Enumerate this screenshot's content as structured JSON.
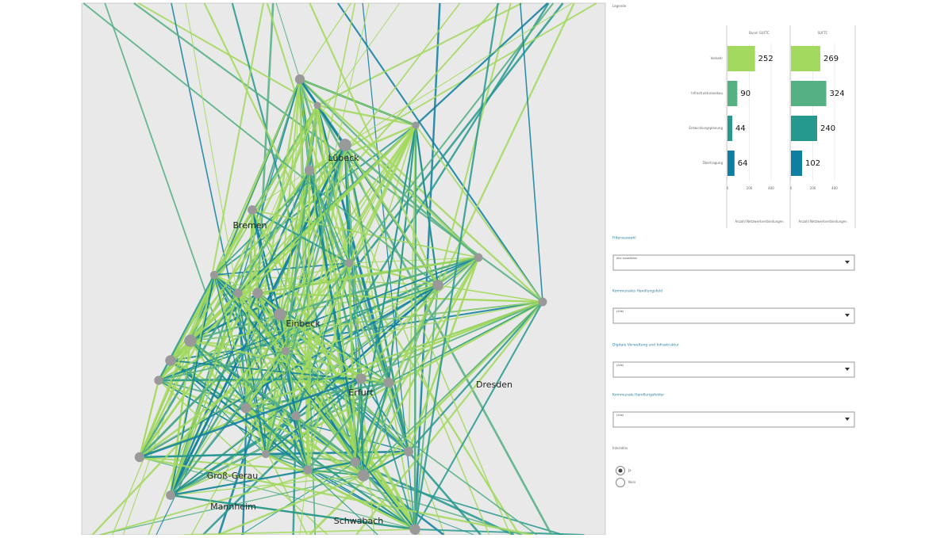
{
  "map": {
    "cities": [
      "Lübeck",
      "Bremen",
      "Einbeck",
      "Erfurt",
      "Dresden",
      "Groß-Gerau",
      "Mannheim",
      "Schwabach"
    ]
  },
  "legend": {
    "title": "Legende",
    "categories": [
      "Verkehr",
      "Infrastrukturausbau",
      "Entwicklungsplanung",
      "Übertragung"
    ],
    "colors": [
      "#a3d95e",
      "#55b083",
      "#26998f",
      "#0e7fa0"
    ],
    "axis_label": "Anzahl Netzwerkverbindungen",
    "xlim": [
      0,
      400
    ],
    "xticks": [
      0,
      200,
      400
    ],
    "charts": [
      {
        "title": "Bund: SUFTC",
        "values": [
          252,
          90,
          44,
          64
        ]
      },
      {
        "title": "SUFTC",
        "values": [
          269,
          324,
          240,
          102
        ]
      }
    ]
  },
  "filters": [
    {
      "label": "Filterauswahl",
      "selected": "Alle auswählen"
    },
    {
      "label": "Kommunales Handlungsfeld",
      "selected": "(Alle)"
    },
    {
      "label": "Digitale Verwaltung und Infrastruktur",
      "selected": "(Alle)"
    },
    {
      "label": "Kommunale Handlungsfelder",
      "selected": "(Alle)"
    }
  ],
  "radio": {
    "label": "Interaktiv",
    "options": [
      "Ja",
      "Nein"
    ]
  }
}
